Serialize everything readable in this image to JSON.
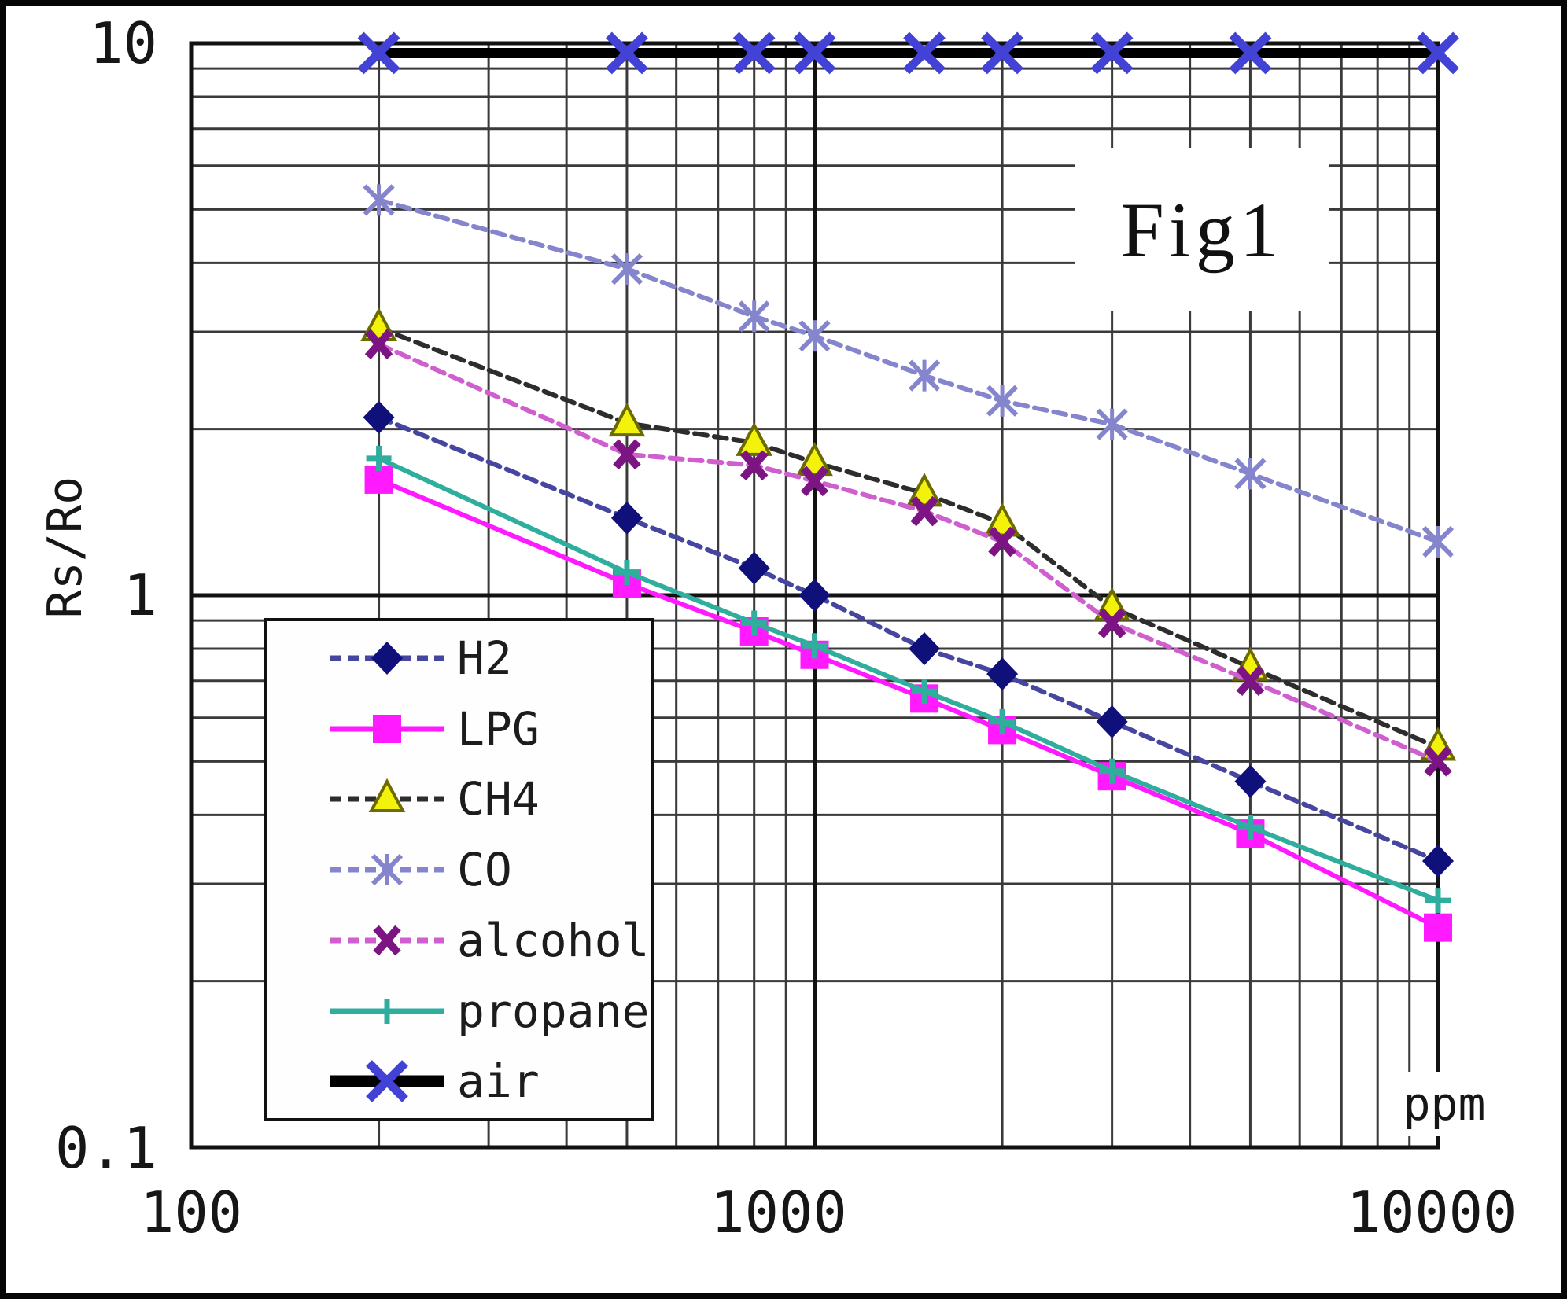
{
  "chart_data": {
    "type": "line",
    "figure_label": "Fig1",
    "ylabel": "Rs/Ro",
    "x_unit": "ppm",
    "x_scale": "log",
    "y_scale": "log",
    "x_range": [
      100,
      10000
    ],
    "y_range": [
      0.1,
      10
    ],
    "grid": true,
    "legend_position": "bottom-left",
    "x_tick_labels": [
      "100",
      "1000",
      "10000"
    ],
    "y_tick_labels": [
      "10",
      "1",
      "0.1"
    ],
    "x": [
      200,
      500,
      800,
      1000,
      1500,
      2000,
      3000,
      5000,
      10000
    ],
    "series": [
      {
        "name": "H2",
        "values": [
          2.1,
          1.38,
          1.12,
          1.0,
          0.8,
          0.72,
          0.59,
          0.46,
          0.33
        ],
        "line": "#4646a0",
        "marker": "diamond",
        "markerColor": "#10107a",
        "dash": true,
        "lineWidth": 6
      },
      {
        "name": "LPG",
        "values": [
          1.62,
          1.05,
          0.86,
          0.78,
          0.65,
          0.57,
          0.47,
          0.37,
          0.25
        ],
        "line": "#ff1aff",
        "marker": "square",
        "markerColor": "#ff1aff",
        "dash": false,
        "lineWidth": 6
      },
      {
        "name": "CH4",
        "values": [
          3.05,
          2.05,
          1.89,
          1.74,
          1.53,
          1.35,
          0.95,
          0.74,
          0.53
        ],
        "line": "#2d2d2d",
        "marker": "triangle",
        "markerColor": "#f2f20a",
        "markerStroke": "#6b6b00",
        "dash": true,
        "lineWidth": 6
      },
      {
        "name": "CO",
        "values": [
          5.2,
          3.9,
          3.2,
          2.95,
          2.5,
          2.25,
          2.04,
          1.66,
          1.25
        ],
        "line": "#8585cd",
        "marker": "star",
        "markerColor": "#8585cd",
        "dash": true,
        "lineWidth": 6
      },
      {
        "name": "alcohol",
        "values": [
          2.85,
          1.8,
          1.72,
          1.61,
          1.42,
          1.25,
          0.89,
          0.7,
          0.5
        ],
        "line": "#cf5fcf",
        "marker": "xblob",
        "markerColor": "#7c1583",
        "dash": true,
        "lineWidth": 6
      },
      {
        "name": "propane",
        "values": [
          1.77,
          1.1,
          0.89,
          0.81,
          0.67,
          0.59,
          0.48,
          0.38,
          0.28
        ],
        "line": "#2fae9e",
        "marker": "plus",
        "markerColor": "#2fae9e",
        "dash": false,
        "lineWidth": 6
      },
      {
        "name": "air",
        "values": [
          9.6,
          9.6,
          9.6,
          9.6,
          9.6,
          9.6,
          9.6,
          9.6,
          9.6
        ],
        "line": "#000000",
        "marker": "xcross",
        "markerColor": "#4242d6",
        "dash": false,
        "lineWidth": 13
      }
    ]
  }
}
